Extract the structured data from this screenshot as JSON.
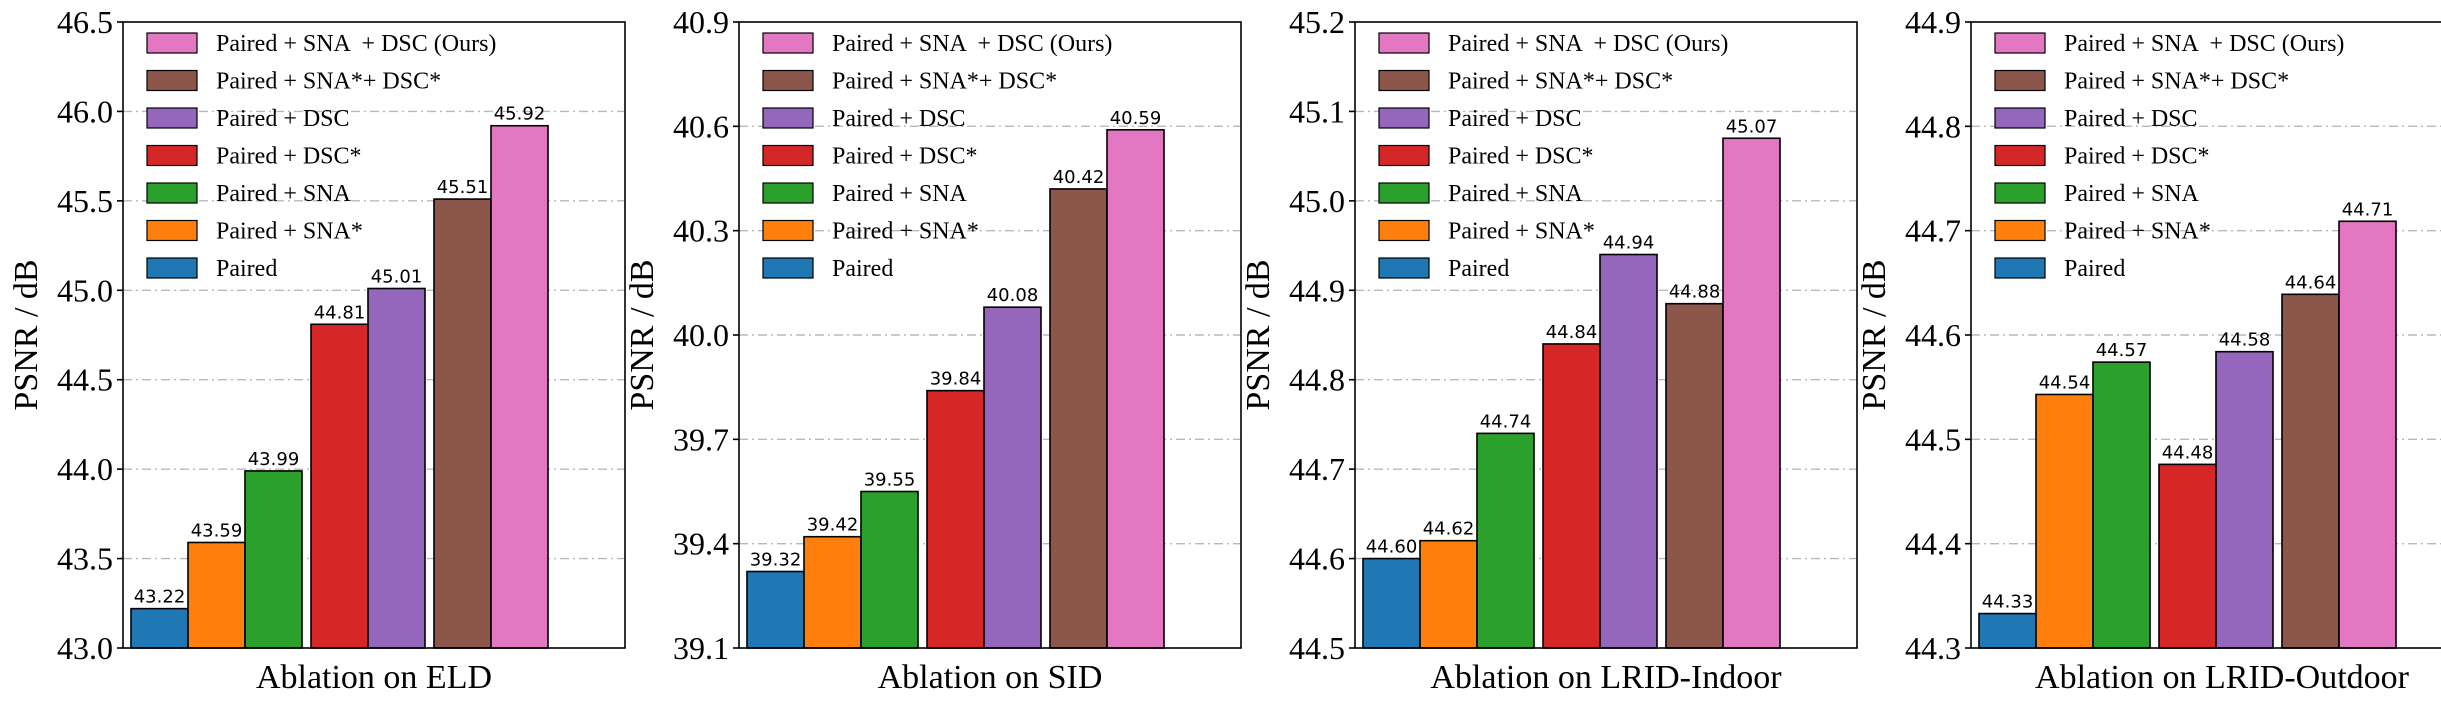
{
  "series_order": [
    "Paired + SNA  + DSC (Ours)",
    "Paired + SNA*+ DSC*",
    "Paired + DSC",
    "Paired + DSC*",
    "Paired + SNA",
    "Paired + SNA*",
    "Paired"
  ],
  "colors": {
    "Paired": "#1f77b4",
    "Paired + SNA*": "#ff7f0e",
    "Paired + SNA": "#2ca02c",
    "Paired + DSC*": "#d62728",
    "Paired + DSC": "#9467bd",
    "Paired + SNA*+ DSC*": "#8c564b",
    "Paired + SNA  + DSC (Ours)": "#e377c2"
  },
  "chart_data": [
    {
      "type": "bar",
      "title": "",
      "xlabel": "Ablation on ELD",
      "ylabel": "PSNR / dB",
      "ylim": [
        43.0,
        46.5
      ],
      "yticks": [
        43.0,
        43.5,
        44.0,
        44.5,
        45.0,
        45.5,
        46.0,
        46.5
      ],
      "ytick_labels": [
        "43.0",
        "43.5",
        "44.0",
        "44.5",
        "45.0",
        "45.5",
        "46.0",
        "46.5"
      ],
      "grid": "horizontal dash-dot",
      "legend_position": "top-left",
      "bars": [
        {
          "name": "Paired",
          "value": 43.22,
          "label": "43.22"
        },
        {
          "name": "Paired + SNA*",
          "value": 43.59,
          "label": "43.59"
        },
        {
          "name": "Paired + SNA",
          "value": 43.99,
          "label": "43.99"
        },
        {
          "name": "Paired + DSC*",
          "value": 44.81,
          "label": "44.81"
        },
        {
          "name": "Paired + DSC",
          "value": 45.01,
          "label": "45.01"
        },
        {
          "name": "Paired + SNA*+ DSC*",
          "value": 45.51,
          "label": "45.51"
        },
        {
          "name": "Paired + SNA  + DSC (Ours)",
          "value": 45.92,
          "label": "45.92"
        }
      ]
    },
    {
      "type": "bar",
      "title": "",
      "xlabel": "Ablation on SID",
      "ylabel": "PSNR / dB",
      "ylim": [
        39.1,
        40.9
      ],
      "yticks": [
        39.1,
        39.4,
        39.7,
        40.0,
        40.3,
        40.6,
        40.9
      ],
      "ytick_labels": [
        "39.1",
        "39.4",
        "39.7",
        "40.0",
        "40.3",
        "40.6",
        "40.9"
      ],
      "grid": "horizontal dash-dot",
      "legend_position": "top-left",
      "bars": [
        {
          "name": "Paired",
          "value": 39.32,
          "label": "39.32"
        },
        {
          "name": "Paired + SNA*",
          "value": 39.42,
          "label": "39.42"
        },
        {
          "name": "Paired + SNA",
          "value": 39.55,
          "label": "39.55"
        },
        {
          "name": "Paired + DSC*",
          "value": 39.84,
          "label": "39.84"
        },
        {
          "name": "Paired + DSC",
          "value": 40.08,
          "label": "40.08"
        },
        {
          "name": "Paired + SNA*+ DSC*",
          "value": 40.42,
          "label": "40.42"
        },
        {
          "name": "Paired + SNA  + DSC (Ours)",
          "value": 40.59,
          "label": "40.59"
        }
      ]
    },
    {
      "type": "bar",
      "title": "",
      "xlabel": "Ablation on LRID-Indoor",
      "ylabel": "PSNR / dB",
      "ylim": [
        44.5,
        45.2
      ],
      "yticks": [
        44.5,
        44.6,
        44.7,
        44.8,
        44.9,
        45.0,
        45.1,
        45.2
      ],
      "ytick_labels": [
        "44.5",
        "44.6",
        "44.7",
        "44.8",
        "44.9",
        "45.0",
        "45.1",
        "45.2"
      ],
      "grid": "horizontal dash-dot",
      "legend_position": "top-left",
      "bars": [
        {
          "name": "Paired",
          "value": 44.6,
          "label": "44.60"
        },
        {
          "name": "Paired + SNA*",
          "value": 44.62,
          "label": "44.62"
        },
        {
          "name": "Paired + SNA",
          "value": 44.74,
          "label": "44.74"
        },
        {
          "name": "Paired + DSC*",
          "value": 44.84,
          "label": "44.84"
        },
        {
          "name": "Paired + DSC",
          "value": 44.94,
          "label": "44.94"
        },
        {
          "name": "Paired + SNA*+ DSC*",
          "value": 44.885,
          "label": "44.88"
        },
        {
          "name": "Paired + SNA  + DSC (Ours)",
          "value": 45.07,
          "label": "45.07"
        }
      ]
    },
    {
      "type": "bar",
      "title": "",
      "xlabel": "Ablation on LRID-Outdoor",
      "ylabel": "PSNR / dB",
      "ylim": [
        44.3,
        44.9
      ],
      "yticks": [
        44.3,
        44.4,
        44.5,
        44.6,
        44.7,
        44.8,
        44.9
      ],
      "ytick_labels": [
        "44.3",
        "44.4",
        "44.5",
        "44.6",
        "44.7",
        "44.8",
        "44.9"
      ],
      "grid": "horizontal dash-dot",
      "legend_position": "top-left",
      "bars": [
        {
          "name": "Paired",
          "value": 44.333,
          "label": "44.33"
        },
        {
          "name": "Paired + SNA*",
          "value": 44.543,
          "label": "44.54"
        },
        {
          "name": "Paired + SNA",
          "value": 44.574,
          "label": "44.57"
        },
        {
          "name": "Paired + DSC*",
          "value": 44.476,
          "label": "44.48"
        },
        {
          "name": "Paired + DSC",
          "value": 44.584,
          "label": "44.58"
        },
        {
          "name": "Paired + SNA*+ DSC*",
          "value": 44.639,
          "label": "44.64"
        },
        {
          "name": "Paired + SNA  + DSC (Ours)",
          "value": 44.709,
          "label": "44.71"
        }
      ]
    }
  ]
}
